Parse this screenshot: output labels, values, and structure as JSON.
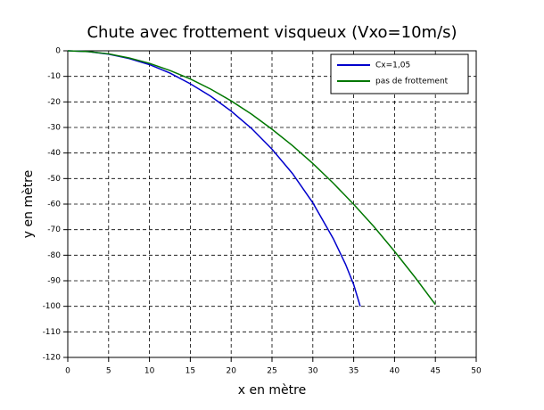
{
  "chart_data": {
    "type": "line",
    "title": "Chute avec frottement visqueux (Vxo=10m/s)",
    "x_label": "x en mètre",
    "y_label": "y en mètre",
    "xlim": [
      0,
      50
    ],
    "ylim": [
      -120,
      0
    ],
    "xticks": [
      0,
      5,
      10,
      15,
      20,
      25,
      30,
      35,
      40,
      45,
      50
    ],
    "yticks": [
      0,
      -10,
      -20,
      -30,
      -40,
      -50,
      -60,
      -70,
      -80,
      -90,
      -100,
      -110,
      -120
    ],
    "grid": true,
    "legend": "upper right",
    "series": [
      {
        "name": "Cx=1,05",
        "color": "#0000cc",
        "x": [
          0,
          2.5,
          5,
          7.5,
          10,
          12.5,
          15,
          17.5,
          20,
          22.5,
          25,
          27.5,
          30,
          32.5,
          34,
          35,
          35.8
        ],
        "values": [
          0,
          -0.3,
          -1.3,
          -3,
          -5.4,
          -8.7,
          -12.9,
          -17.8,
          -23.6,
          -30.4,
          -38.5,
          -48,
          -59.5,
          -73.5,
          -83.5,
          -91.5,
          -100
        ]
      },
      {
        "name": "pas de frottement",
        "color": "#007700",
        "x": [
          0,
          2.5,
          5,
          7.5,
          10,
          12.5,
          15,
          17.5,
          20,
          22.5,
          25,
          27.5,
          30,
          32.5,
          35,
          37.5,
          40,
          42.5,
          45
        ],
        "values": [
          0,
          -0.3,
          -1.2,
          -2.8,
          -4.9,
          -7.7,
          -11,
          -15,
          -19.6,
          -24.8,
          -30.7,
          -37.1,
          -44.1,
          -51.8,
          -60.1,
          -68.9,
          -78.5,
          -88.6,
          -99.3
        ]
      }
    ]
  }
}
